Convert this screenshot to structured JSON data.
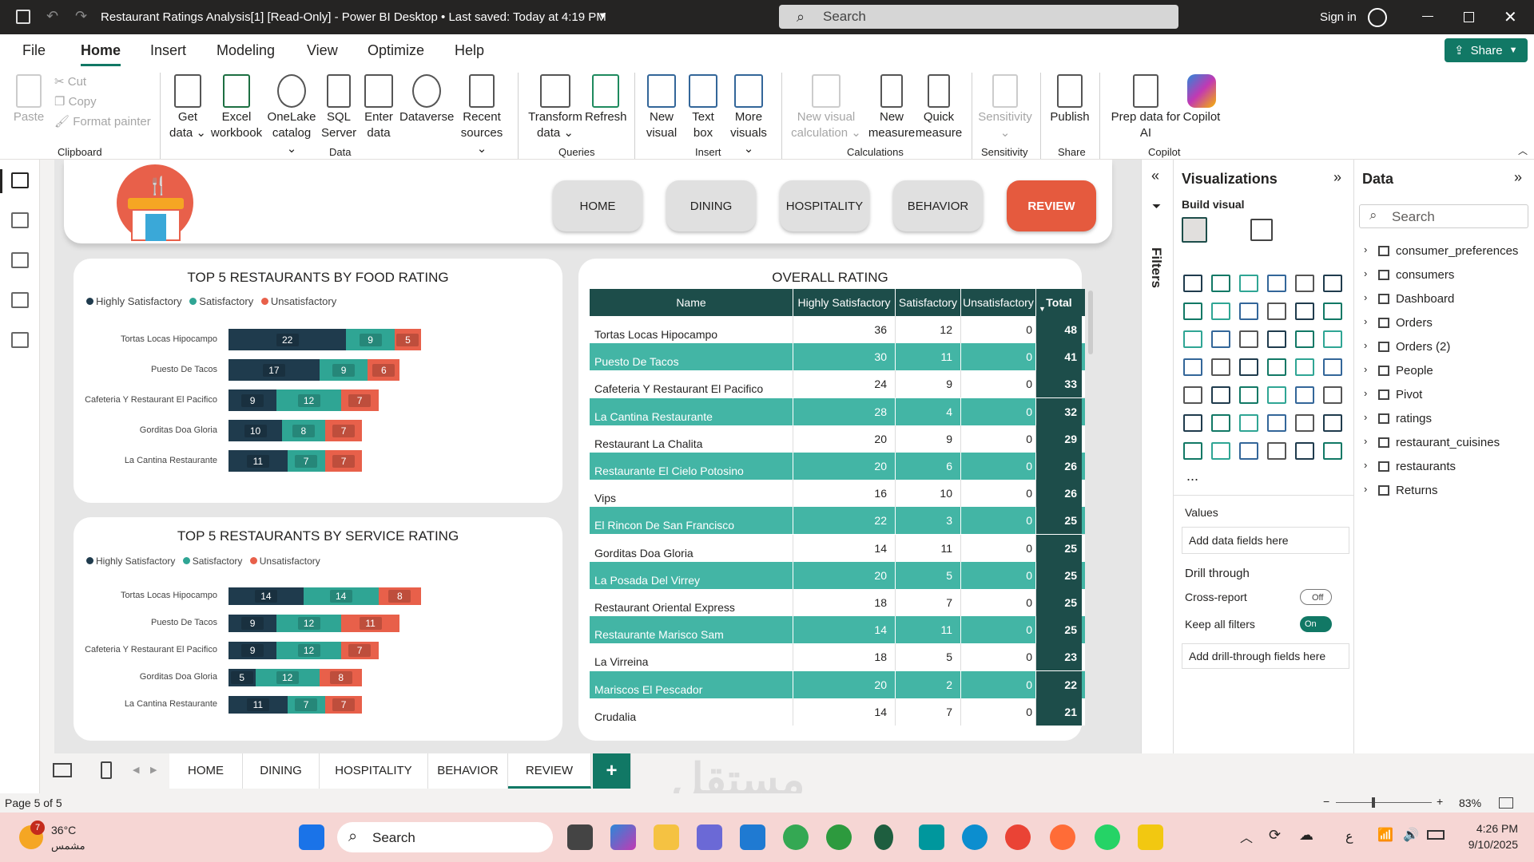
{
  "window": {
    "title": "Restaurant Ratings Analysis[1] [Read-Only] - Power BI Desktop  •  Last saved: Today at 4:19 PM",
    "search": "Search",
    "signin": "Sign in"
  },
  "menu": [
    "File",
    "Home",
    "Insert",
    "Modeling",
    "View",
    "Optimize",
    "Help"
  ],
  "share": "Share",
  "ribbon": {
    "clipboard": {
      "paste": "Paste",
      "cut": "Cut",
      "copy": "Copy",
      "format_painter": "Format painter",
      "group": "Clipboard"
    },
    "data": [
      {
        "l1": "Get",
        "l2": "data"
      },
      {
        "l1": "Excel",
        "l2": "workbook"
      },
      {
        "l1": "OneLake",
        "l2": "catalog"
      },
      {
        "l1": "SQL",
        "l2": "Server"
      },
      {
        "l1": "Enter",
        "l2": "data"
      },
      {
        "l1": "Dataverse",
        "l2": ""
      },
      {
        "l1": "Recent",
        "l2": "sources"
      }
    ],
    "data_group": "Data",
    "queries": [
      {
        "l1": "Transform",
        "l2": "data"
      },
      {
        "l1": "Refresh",
        "l2": ""
      }
    ],
    "queries_group": "Queries",
    "insert": [
      {
        "l1": "New",
        "l2": "visual"
      },
      {
        "l1": "Text",
        "l2": "box"
      },
      {
        "l1": "More",
        "l2": "visuals"
      }
    ],
    "insert_group": "Insert",
    "calc": [
      {
        "l1": "New visual",
        "l2": "calculation"
      },
      {
        "l1": "New",
        "l2": "measure"
      },
      {
        "l1": "Quick",
        "l2": "measure"
      }
    ],
    "calc_group": "Calculations",
    "sensitivity": "Sensitivity",
    "sensitivity_group": "Sensitivity",
    "publish": "Publish",
    "share_group": "Share",
    "copilot": [
      {
        "l1": "Prep data for",
        "l2": "AI"
      },
      {
        "l1": "Copilot",
        "l2": ""
      }
    ],
    "copilot_group": "Copilot"
  },
  "nav": [
    "HOME",
    "DINING",
    "HOSPITALITY",
    "BEHAVIOR",
    "REVIEW"
  ],
  "legend": [
    "Highly Satisfactory",
    "Satisfactory",
    "Unsatisfactory"
  ],
  "colors": {
    "dark": "#1f3b4d",
    "teal": "#2fa594",
    "coral": "#e8604a",
    "tableHead": "#1d4d4a",
    "tableAlt": "#43b5a5"
  },
  "chart_data": [
    {
      "type": "bar",
      "title": "TOP 5 RESTAURANTS BY FOOD RATING",
      "categories": [
        "Tortas Locas Hipocampo",
        "Puesto De Tacos",
        "Cafeteria Y Restaurant El Pacifico",
        "Gorditas Doa Gloria",
        "La Cantina Restaurante"
      ],
      "series": [
        {
          "name": "Highly Satisfactory",
          "values": [
            22,
            17,
            9,
            10,
            11
          ]
        },
        {
          "name": "Satisfactory",
          "values": [
            9,
            9,
            12,
            8,
            7
          ]
        },
        {
          "name": "Unsatisfactory",
          "values": [
            5,
            6,
            7,
            7,
            7
          ]
        }
      ]
    },
    {
      "type": "bar",
      "title": "TOP 5 RESTAURANTS BY SERVICE RATING",
      "categories": [
        "Tortas Locas Hipocampo",
        "Puesto De Tacos",
        "Cafeteria Y Restaurant El Pacifico",
        "Gorditas Doa Gloria",
        "La Cantina Restaurante"
      ],
      "series": [
        {
          "name": "Highly Satisfactory",
          "values": [
            14,
            9,
            9,
            5,
            11
          ]
        },
        {
          "name": "Satisfactory",
          "values": [
            14,
            12,
            12,
            12,
            7
          ]
        },
        {
          "name": "Unsatisfactory",
          "values": [
            8,
            11,
            7,
            8,
            7
          ]
        }
      ]
    }
  ],
  "table": {
    "title": "OVERALL RATING",
    "headers": [
      "Name",
      "Highly Satisfactory",
      "Satisfactory",
      "Unsatisfactory",
      "Total"
    ],
    "rows": [
      [
        "Tortas Locas Hipocampo",
        "36",
        "12",
        "0",
        "48"
      ],
      [
        "Puesto De Tacos",
        "30",
        "11",
        "0",
        "41"
      ],
      [
        "Cafeteria Y Restaurant El Pacifico",
        "24",
        "9",
        "0",
        "33"
      ],
      [
        "La Cantina Restaurante",
        "28",
        "4",
        "0",
        "32"
      ],
      [
        "Restaurant La Chalita",
        "20",
        "9",
        "0",
        "29"
      ],
      [
        "Restaurante El Cielo Potosino",
        "20",
        "6",
        "0",
        "26"
      ],
      [
        "Vips",
        "16",
        "10",
        "0",
        "26"
      ],
      [
        "El Rincon De San Francisco",
        "22",
        "3",
        "0",
        "25"
      ],
      [
        "Gorditas Doa Gloria",
        "14",
        "11",
        "0",
        "25"
      ],
      [
        "La Posada Del Virrey",
        "20",
        "5",
        "0",
        "25"
      ],
      [
        "Restaurant Oriental Express",
        "18",
        "7",
        "0",
        "25"
      ],
      [
        "Restaurante Marisco Sam",
        "14",
        "11",
        "0",
        "25"
      ],
      [
        "La Virreina",
        "18",
        "5",
        "0",
        "23"
      ],
      [
        "Mariscos El Pescador",
        "20",
        "2",
        "0",
        "22"
      ],
      [
        "Crudalia",
        "14",
        "7",
        "0",
        "21"
      ]
    ]
  },
  "tabs": [
    "HOME",
    "DINING",
    "HOSPITALITY",
    "BEHAVIOR",
    "REVIEW"
  ],
  "add_tab": "+",
  "status": {
    "page": "Page 5 of 5",
    "zoom": "83%"
  },
  "filters_label": "Filters",
  "viz": {
    "title": "Visualizations",
    "build": "Build visual",
    "values": "Values",
    "add_data": "Add data fields here",
    "drill": "Drill through",
    "cross": "Cross-report",
    "cross_state": "Off",
    "keep": "Keep all filters",
    "keep_state": "On",
    "add_drill": "Add drill-through fields here",
    "more": "..."
  },
  "data_pane": {
    "title": "Data",
    "search": "Search",
    "items": [
      "consumer_preferences",
      "consumers",
      "Dashboard",
      "Orders",
      "Orders (2)",
      "People",
      "Pivot",
      "ratings",
      "restaurant_cuisines",
      "restaurants",
      "Returns"
    ]
  },
  "taskbar": {
    "temp": "36°C",
    "place": "مشمس",
    "badge": "7",
    "search": "Search",
    "time": "4:26 PM",
    "date": "9/10/2025",
    "lang": "ع"
  }
}
